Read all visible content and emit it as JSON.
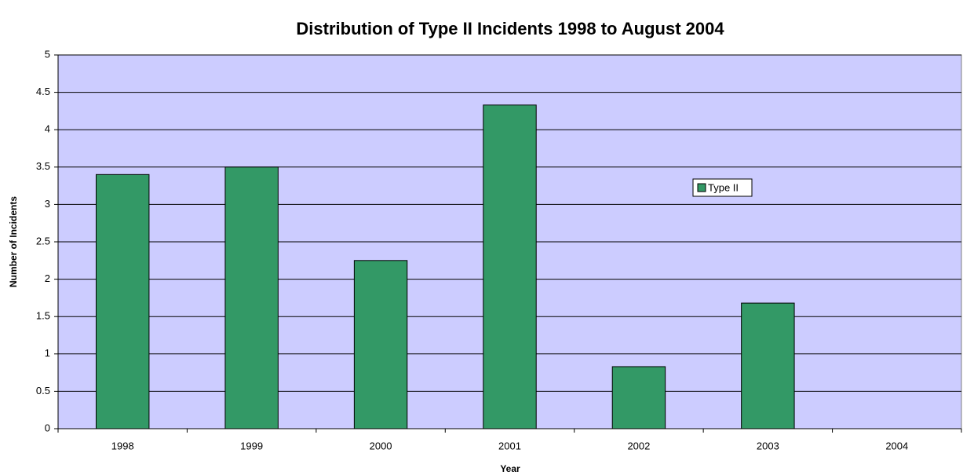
{
  "chart_data": {
    "type": "bar",
    "title": "Distribution of Type II Incidents 1998 to August 2004",
    "x_label": "Year",
    "y_label": "Number of Incidents",
    "categories": [
      "1998",
      "1999",
      "2000",
      "2001",
      "2002",
      "2003",
      "2004"
    ],
    "series": [
      {
        "name": "Type II",
        "color": "#339966",
        "values": [
          3.4,
          3.5,
          2.25,
          4.33,
          0.83,
          1.68,
          0
        ]
      }
    ],
    "ylim": [
      0,
      5
    ],
    "yticks": [
      0,
      0.5,
      1,
      1.5,
      2,
      2.5,
      3,
      3.5,
      4,
      4.5,
      5
    ],
    "grid": true,
    "plot_background": "#ccccff",
    "legend": "center-right"
  }
}
